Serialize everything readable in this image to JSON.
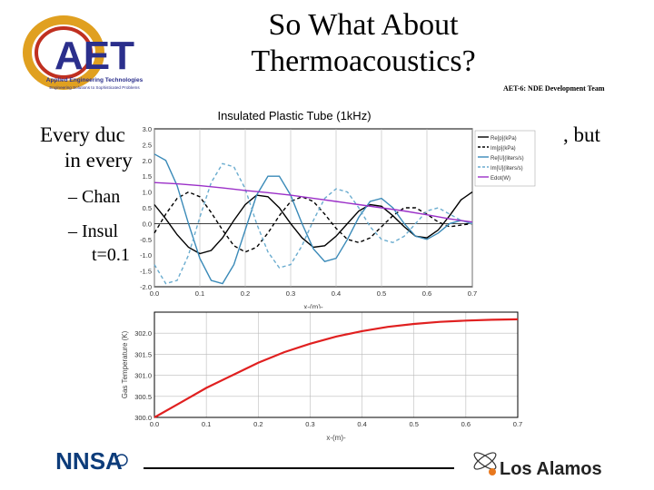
{
  "header": {
    "logo_text": "AET",
    "logo_subtitle": "Applied Engineering Technologies",
    "logo_tagline": "Engineering Solutions to Sophisticated Problems",
    "title_line1": "So What About",
    "title_line2": "Thermoacoustics?",
    "team": "AET-6: NDE Development Team"
  },
  "body": {
    "line1_start": "Every duc",
    "line1_end": ", but",
    "line2": "in every",
    "bullet1": "– Chan",
    "bullet2": "– Insul",
    "bullet2_cont": "t=0.1"
  },
  "footer": {
    "nnsa_text": "NNSA",
    "lanl_text": "Los Alamos"
  },
  "chart_data": [
    {
      "type": "line",
      "title": "Insulated Plastic Tube (1kHz)",
      "xlabel": "x-(m)-",
      "ylabel": "",
      "xlim": [
        0,
        0.7
      ],
      "ylim": [
        -2.0,
        3.0
      ],
      "xticks": [
        "0.0",
        "0.1",
        "0.2",
        "0.3",
        "0.4",
        "0.5",
        "0.6",
        "0.7"
      ],
      "yticks": [
        "3.0",
        "2.5",
        "2.0",
        "1.5",
        "1.0",
        "0.5",
        "0.0",
        "-0.5",
        "-1.0",
        "-1.5",
        "-2.0"
      ],
      "legend_position": "top-right",
      "series": [
        {
          "name": "Re[p](kPa)",
          "color": "#000000",
          "dash": "solid",
          "x": [
            0,
            0.025,
            0.05,
            0.075,
            0.1,
            0.125,
            0.15,
            0.175,
            0.2,
            0.225,
            0.25,
            0.275,
            0.3,
            0.325,
            0.35,
            0.375,
            0.4,
            0.425,
            0.45,
            0.475,
            0.5,
            0.525,
            0.55,
            0.575,
            0.6,
            0.625,
            0.65,
            0.675,
            0.7
          ],
          "values": [
            0.6,
            0.15,
            -0.35,
            -0.75,
            -0.95,
            -0.85,
            -0.45,
            0.1,
            0.6,
            0.9,
            0.85,
            0.5,
            0.0,
            -0.45,
            -0.75,
            -0.7,
            -0.4,
            0.0,
            0.4,
            0.6,
            0.55,
            0.25,
            -0.1,
            -0.4,
            -0.45,
            -0.2,
            0.25,
            0.75,
            1.0
          ]
        },
        {
          "name": "Im[p](kPa)",
          "color": "#000000",
          "dash": "dashed",
          "x": [
            0,
            0.025,
            0.05,
            0.075,
            0.1,
            0.125,
            0.15,
            0.175,
            0.2,
            0.225,
            0.25,
            0.275,
            0.3,
            0.325,
            0.35,
            0.375,
            0.4,
            0.425,
            0.45,
            0.475,
            0.5,
            0.525,
            0.55,
            0.575,
            0.6,
            0.625,
            0.65,
            0.675,
            0.7
          ],
          "values": [
            -0.3,
            0.3,
            0.8,
            1.0,
            0.85,
            0.35,
            -0.2,
            -0.7,
            -0.9,
            -0.75,
            -0.3,
            0.25,
            0.7,
            0.85,
            0.7,
            0.3,
            -0.15,
            -0.5,
            -0.6,
            -0.45,
            -0.1,
            0.25,
            0.5,
            0.5,
            0.3,
            0.05,
            -0.1,
            -0.05,
            0.0
          ]
        },
        {
          "name": "Re[U](liters/s)",
          "color": "#3a8ab8",
          "dash": "solid",
          "x": [
            0,
            0.025,
            0.05,
            0.075,
            0.1,
            0.125,
            0.15,
            0.175,
            0.2,
            0.225,
            0.25,
            0.275,
            0.3,
            0.325,
            0.35,
            0.375,
            0.4,
            0.425,
            0.45,
            0.475,
            0.5,
            0.525,
            0.55,
            0.575,
            0.6,
            0.625,
            0.65,
            0.675,
            0.7
          ],
          "values": [
            2.2,
            2.0,
            1.2,
            0.0,
            -1.1,
            -1.8,
            -1.9,
            -1.3,
            -0.2,
            0.9,
            1.5,
            1.5,
            0.9,
            0.0,
            -0.8,
            -1.2,
            -1.1,
            -0.5,
            0.2,
            0.7,
            0.8,
            0.5,
            0.0,
            -0.4,
            -0.5,
            -0.3,
            0.0,
            0.1,
            0.0
          ]
        },
        {
          "name": "Im[U](liters/s)",
          "color": "#6aaccf",
          "dash": "dashed",
          "x": [
            0,
            0.025,
            0.05,
            0.075,
            0.1,
            0.125,
            0.15,
            0.175,
            0.2,
            0.225,
            0.25,
            0.275,
            0.3,
            0.325,
            0.35,
            0.375,
            0.4,
            0.425,
            0.45,
            0.475,
            0.5,
            0.525,
            0.55,
            0.575,
            0.6,
            0.625,
            0.65,
            0.675,
            0.7
          ],
          "values": [
            -1.3,
            -1.9,
            -1.8,
            -1.0,
            0.2,
            1.3,
            1.9,
            1.8,
            1.1,
            0.0,
            -0.9,
            -1.4,
            -1.3,
            -0.7,
            0.1,
            0.8,
            1.1,
            1.0,
            0.5,
            -0.1,
            -0.5,
            -0.6,
            -0.4,
            0.0,
            0.4,
            0.5,
            0.3,
            0.1,
            0.0
          ]
        },
        {
          "name": "Edot(W)",
          "color": "#9b30c8",
          "dash": "solid",
          "x": [
            0,
            0.05,
            0.1,
            0.15,
            0.2,
            0.25,
            0.3,
            0.35,
            0.4,
            0.45,
            0.5,
            0.55,
            0.6,
            0.65,
            0.7
          ],
          "values": [
            1.3,
            1.26,
            1.2,
            1.13,
            1.05,
            0.98,
            0.9,
            0.8,
            0.7,
            0.6,
            0.5,
            0.4,
            0.28,
            0.15,
            0.05
          ]
        }
      ]
    },
    {
      "type": "line",
      "title": "",
      "xlabel": "x-(m)-",
      "ylabel": "Gas Temperature (K)",
      "xlim": [
        0,
        0.7
      ],
      "ylim": [
        300.0,
        302.5
      ],
      "xticks": [
        "0.0",
        "0.1",
        "0.2",
        "0.3",
        "0.4",
        "0.5",
        "0.6",
        "0.7"
      ],
      "yticks": [
        "302.0",
        "301.5",
        "301.0",
        "300.5",
        "300.0"
      ],
      "series": [
        {
          "name": "",
          "color": "#e02020",
          "dash": "solid",
          "x": [
            0,
            0.05,
            0.1,
            0.15,
            0.2,
            0.25,
            0.3,
            0.35,
            0.4,
            0.45,
            0.5,
            0.55,
            0.6,
            0.65,
            0.7
          ],
          "values": [
            300.0,
            300.35,
            300.7,
            301.0,
            301.3,
            301.55,
            301.75,
            301.92,
            302.05,
            302.15,
            302.22,
            302.27,
            302.3,
            302.32,
            302.33
          ]
        }
      ]
    }
  ]
}
